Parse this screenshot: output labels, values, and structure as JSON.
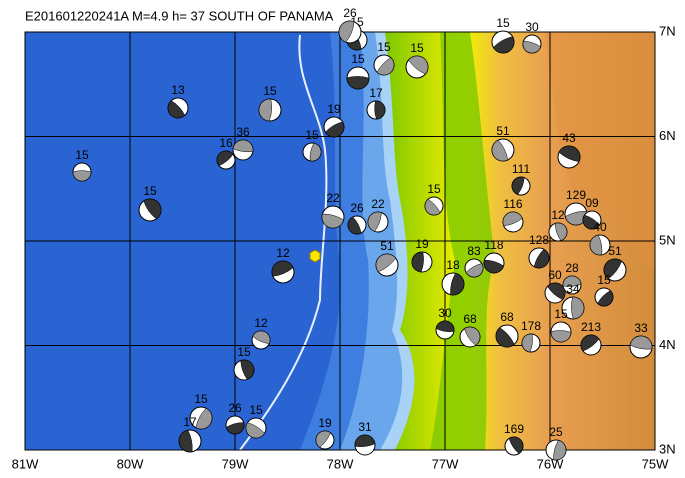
{
  "header": {
    "title": "E201601220241A  M=4.9  h= 37  SOUTH OF PANAMA"
  },
  "x_axis_labels": [
    "81W",
    "80W",
    "79W",
    "78W",
    "77W",
    "76W",
    "75W"
  ],
  "y_axis_labels": [
    "7N",
    "6N",
    "5N",
    "4N",
    "3N"
  ],
  "event_labels": [
    "15",
    "13",
    "15",
    "16",
    "36",
    "15",
    "15",
    "19",
    "22",
    "26",
    "22",
    "12",
    "12",
    "15",
    "15",
    "26",
    "15",
    "17",
    "19",
    "31",
    "15",
    "17",
    "15",
    "15",
    "15",
    "19",
    "51",
    "30",
    "68",
    "18",
    "83",
    "118",
    "51",
    "111",
    "116",
    "43",
    "12",
    "128",
    "129",
    "09",
    "40",
    "51",
    "28",
    "60",
    "34",
    "15",
    "15",
    "68",
    "178",
    "213",
    "33",
    "169",
    "25",
    "15",
    "30",
    "15",
    "26"
  ]
}
